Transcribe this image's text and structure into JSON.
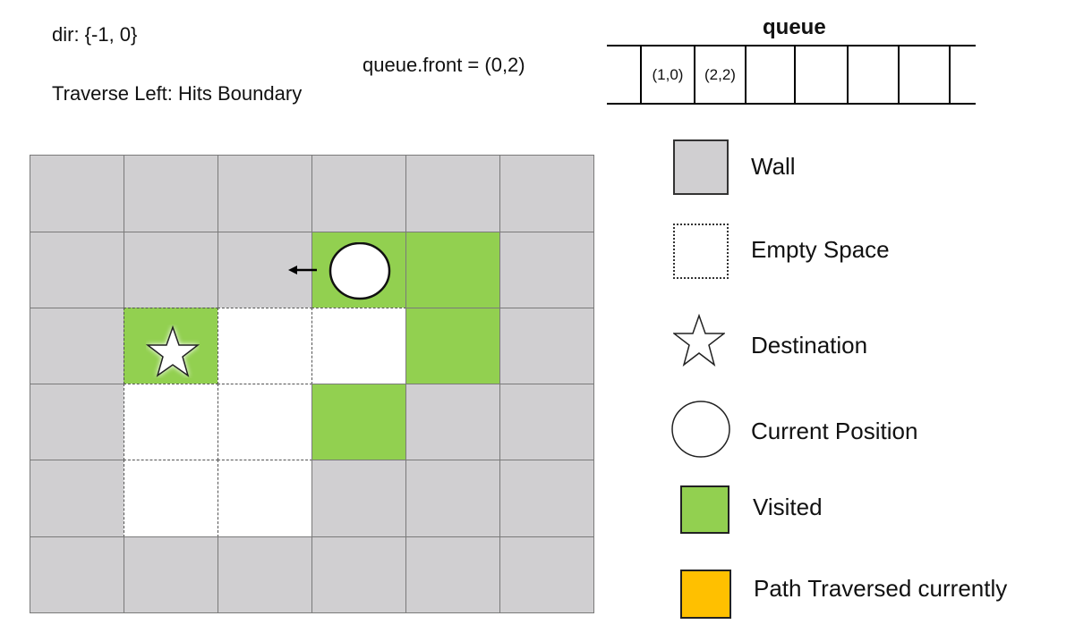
{
  "header": {
    "dir": "dir: {-1, 0}",
    "status": "Traverse Left: Hits Boundary",
    "front": "queue.front = (0,2)"
  },
  "queue": {
    "title": "queue",
    "items": [
      "",
      "(1,0)",
      "(2,2)",
      "",
      "",
      "",
      "",
      ""
    ]
  },
  "grid": {
    "rows": 6,
    "cols": 6,
    "cells": [
      [
        "wall",
        "wall",
        "wall",
        "wall",
        "wall",
        "wall"
      ],
      [
        "wall",
        "wall",
        "wall",
        "visited",
        "visited",
        "wall"
      ],
      [
        "wall",
        "empty-green",
        "empty",
        "empty",
        "visited",
        "wall"
      ],
      [
        "wall",
        "empty",
        "empty",
        "visited",
        "wall",
        "wall"
      ],
      [
        "wall",
        "empty",
        "empty",
        "wall",
        "wall",
        "wall"
      ],
      [
        "wall",
        "wall",
        "wall",
        "wall",
        "wall",
        "wall"
      ]
    ],
    "current_position": {
      "row": 1,
      "col": 3
    },
    "destination": {
      "row": 2,
      "col": 1
    },
    "direction_arrow": "left-arrow-icon"
  },
  "legend": {
    "wall": "Wall",
    "empty": "Empty Space",
    "destination": "Destination",
    "current": "Current Position",
    "visited": "Visited",
    "path": "Path Traversed currently"
  },
  "colors": {
    "wall": "#d0cfd1",
    "visited": "#92d050",
    "path": "#ffc000"
  }
}
